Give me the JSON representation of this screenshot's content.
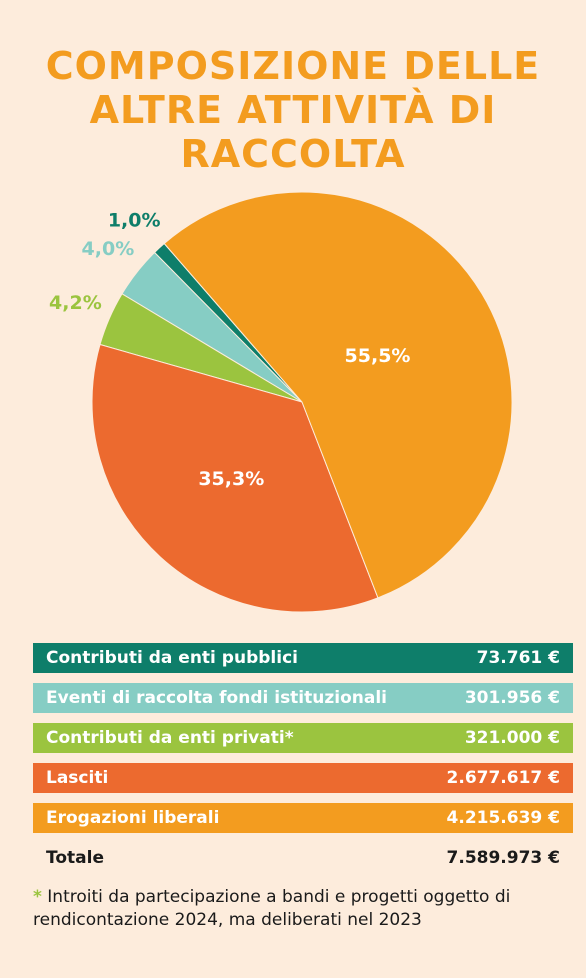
{
  "chart_data": {
    "type": "pie",
    "title": "COMPOSIZIONE DELLE ALTRE ATTIVITÀ DI RACCOLTA",
    "categories": [
      "Contributi da enti pubblici",
      "Eventi di raccolta fondi istituzionali",
      "Contributi da enti privati*",
      "Lasciti",
      "Erogazioni liberali"
    ],
    "values": [
      1.0,
      4.0,
      4.2,
      35.3,
      55.5
    ],
    "value_labels": [
      "1,0%",
      "4,0%",
      "4,2%",
      "35,3%",
      "55,5%"
    ],
    "colors": [
      "#0e7e6a",
      "#86cdc4",
      "#9bc43f",
      "#ec6a2f",
      "#f39c1f"
    ],
    "amounts": [
      "73.761 €",
      "301.956 €",
      "321.000 €",
      "2.677.617 €",
      "4.215.639 €"
    ],
    "total_label": "Totale",
    "total_amount": "7.589.973 €",
    "footnote_mark": "*",
    "footnote": "Introiti da partecipazione a bandi e progetti oggetto di rendicontazione 2024, ma deliberati nel 2023"
  }
}
